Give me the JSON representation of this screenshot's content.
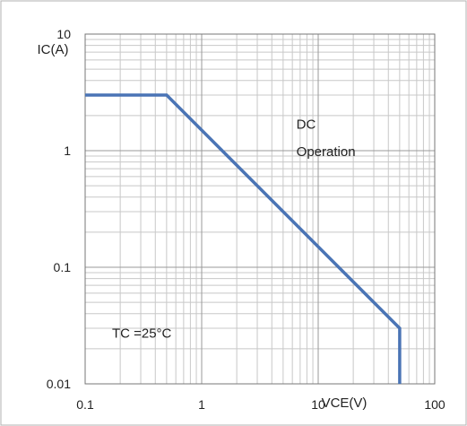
{
  "chart_data": {
    "type": "line",
    "title": "",
    "xlabel": "VCE(V)",
    "ylabel": "IC(A)",
    "xscale": "log",
    "yscale": "log",
    "xlim": [
      0.1,
      100
    ],
    "ylim": [
      0.01,
      10
    ],
    "grid": true,
    "xtick_labels": [
      "0.1",
      "1",
      "10",
      "100"
    ],
    "xtick_values": [
      0.1,
      1,
      10,
      100
    ],
    "ytick_labels": [
      "10",
      "1",
      "0.1",
      "0.01"
    ],
    "ytick_values": [
      10,
      1,
      0.1,
      0.01
    ],
    "series": [
      {
        "color": "#4a74b5",
        "x": [
          0.1,
          0.5,
          50,
          50
        ],
        "y": [
          3,
          3,
          0.03,
          0.01
        ]
      }
    ],
    "annotations": [
      {
        "text": "DC",
        "x": 6.5,
        "y": 1.55
      },
      {
        "text": "Operation",
        "x": 6.5,
        "y": 0.9
      },
      {
        "text": "TC =25°C",
        "x": 0.17,
        "y": 0.025
      }
    ]
  }
}
